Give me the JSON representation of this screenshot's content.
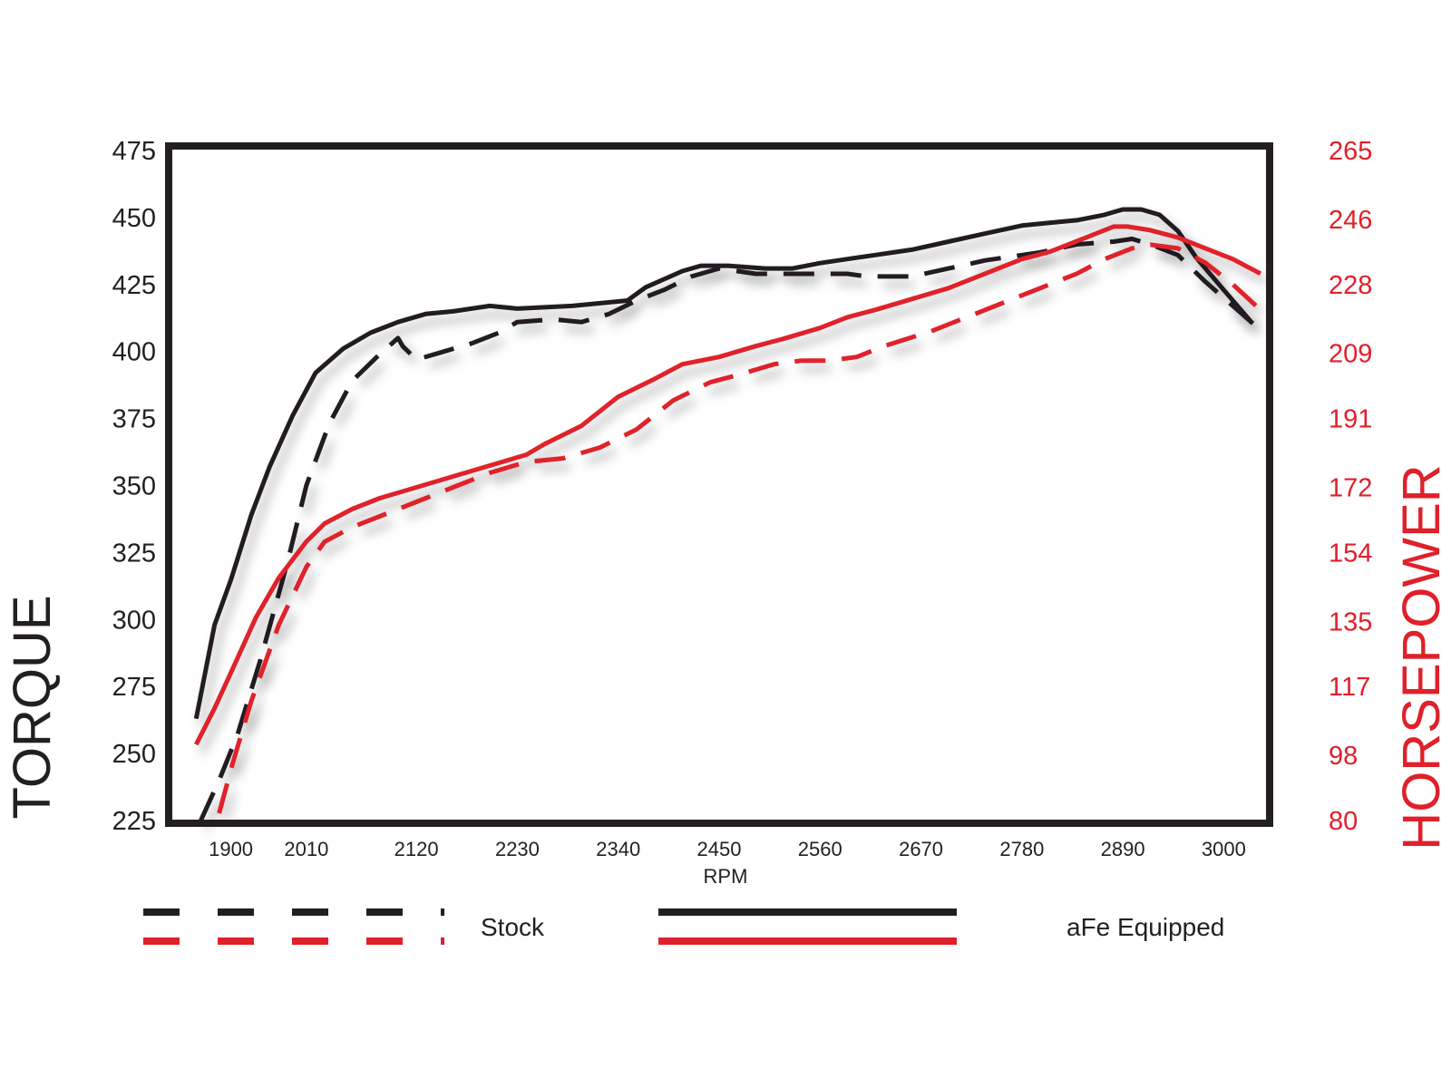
{
  "colors": {
    "torque": "#231f20",
    "horsepower": "#e0202a"
  },
  "chart_data": {
    "type": "line",
    "xlabel": "RPM",
    "ylabel_left": "TORQUE",
    "ylabel_right": "HORSEPOWER",
    "x_ticks": [
      "1900",
      "2010",
      "2120",
      "2230",
      "2340",
      "2450",
      "2560",
      "2670",
      "2780",
      "2890",
      "3000"
    ],
    "xlim": [
      1850,
      3050
    ],
    "y_left_ticks": [
      "475",
      "450",
      "425",
      "400",
      "375",
      "350",
      "325",
      "300",
      "275",
      "250",
      "225"
    ],
    "ylim_left": [
      225,
      475
    ],
    "y_right_ticks": [
      "265",
      "246",
      "228",
      "209",
      "191",
      "172",
      "154",
      "135",
      "117",
      "98",
      "80"
    ],
    "ylim_right": [
      80,
      265
    ],
    "grid": false,
    "legend_position": "bottom",
    "legend": {
      "stock_label": "Stock",
      "afe_label": "aFe Equipped"
    },
    "series": [
      {
        "name": "aFe Equipped",
        "quantity": "torque",
        "axis": "left",
        "style": "solid",
        "x": [
          1880,
          1900,
          1918,
          1940,
          1960,
          1985,
          2010,
          2040,
          2070,
          2100,
          2130,
          2160,
          2200,
          2230,
          2290,
          2350,
          2370,
          2410,
          2430,
          2460,
          2500,
          2530,
          2560,
          2600,
          2620,
          2660,
          2700,
          2740,
          2780,
          2810,
          2840,
          2870,
          2890,
          2910,
          2930,
          2950,
          2970,
          3000,
          3030
        ],
        "y": [
          263,
          298,
          315,
          339,
          357,
          376,
          392,
          401,
          407,
          411,
          414,
          415,
          417,
          416,
          417,
          419,
          424,
          430,
          432,
          432,
          431,
          431,
          433,
          435,
          436,
          438,
          441,
          444,
          447,
          448,
          449,
          451,
          453,
          453,
          451,
          445,
          435,
          423,
          411
        ]
      },
      {
        "name": "Stock",
        "quantity": "torque",
        "axis": "left",
        "style": "dashed",
        "x": [
          1885,
          1905,
          1925,
          1950,
          1980,
          2000,
          2025,
          2050,
          2080,
          2100,
          2105,
          2120,
          2150,
          2180,
          2210,
          2230,
          2270,
          2300,
          2330,
          2360,
          2390,
          2420,
          2450,
          2490,
          2520,
          2560,
          2590,
          2610,
          2630,
          2660,
          2700,
          2740,
          2780,
          2800,
          2840,
          2880,
          2900,
          2920,
          2950,
          2980,
          3020,
          3040
        ],
        "y": [
          225,
          240,
          257,
          285,
          322,
          350,
          373,
          389,
          399,
          405,
          402,
          397,
          400,
          403,
          407,
          411,
          412,
          411,
          414,
          419,
          423,
          428,
          431,
          429,
          429,
          429,
          429,
          428,
          428,
          428,
          431,
          434,
          436,
          437,
          440,
          441,
          442,
          440,
          436,
          426,
          414,
          408
        ]
      },
      {
        "name": "aFe Equipped",
        "quantity": "horsepower",
        "axis": "right",
        "style": "solid",
        "x": [
          1880,
          1900,
          1920,
          1945,
          1970,
          2000,
          2020,
          2050,
          2080,
          2120,
          2160,
          2200,
          2240,
          2260,
          2300,
          2340,
          2380,
          2410,
          2450,
          2490,
          2520,
          2560,
          2590,
          2620,
          2660,
          2700,
          2740,
          2780,
          2810,
          2850,
          2880,
          2895,
          2920,
          2950,
          2980,
          3010,
          3040
        ],
        "y": [
          101,
          111,
          122,
          136,
          147,
          157,
          162,
          166,
          169,
          172,
          175,
          178,
          181,
          184,
          189,
          197,
          202,
          206,
          208,
          211,
          213,
          216,
          219,
          221,
          224,
          227,
          231,
          235,
          237,
          241,
          244,
          244,
          243,
          241,
          238,
          235,
          231
        ]
      },
      {
        "name": "Stock",
        "quantity": "horsepower",
        "axis": "right",
        "style": "dashed",
        "x": [
          1905,
          1920,
          1940,
          1970,
          2000,
          2020,
          2050,
          2080,
          2120,
          2160,
          2200,
          2240,
          2280,
          2320,
          2360,
          2400,
          2440,
          2470,
          2510,
          2540,
          2570,
          2600,
          2630,
          2680,
          2720,
          2760,
          2800,
          2840,
          2870,
          2900,
          2920,
          2950,
          2980,
          3010,
          3040
        ],
        "y": [
          82,
          96,
          113,
          134,
          150,
          157,
          161,
          164,
          168,
          172,
          176,
          179,
          180,
          183,
          188,
          196,
          201,
          203,
          206,
          207,
          207,
          208,
          211,
          215,
          219,
          223,
          227,
          231,
          235,
          238,
          239,
          238,
          234,
          228,
          221
        ]
      }
    ]
  }
}
